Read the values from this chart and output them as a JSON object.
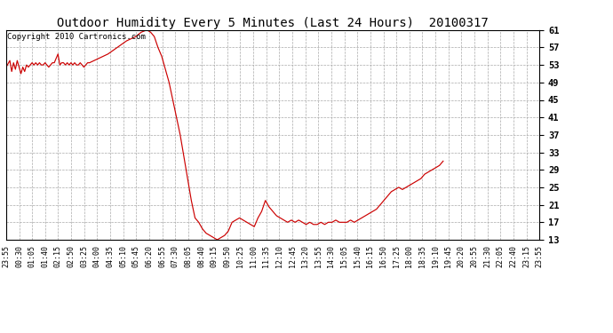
{
  "title": "Outdoor Humidity Every 5 Minutes (Last 24 Hours)  20100317",
  "copyright_text": "Copyright 2010 Cartronics.com",
  "line_color": "#cc0000",
  "background_color": "#ffffff",
  "grid_color": "#aaaaaa",
  "ylim": [
    13.0,
    61.0
  ],
  "yticks": [
    13.0,
    17.0,
    21.0,
    25.0,
    29.0,
    33.0,
    37.0,
    41.0,
    45.0,
    49.0,
    53.0,
    57.0,
    61.0
  ],
  "x_labels": [
    "23:55",
    "00:30",
    "01:05",
    "01:40",
    "02:15",
    "02:50",
    "03:25",
    "04:00",
    "04:35",
    "05:10",
    "05:45",
    "06:20",
    "06:55",
    "07:30",
    "08:05",
    "08:40",
    "09:15",
    "09:50",
    "10:25",
    "11:00",
    "11:35",
    "12:10",
    "12:45",
    "13:20",
    "13:55",
    "14:30",
    "15:05",
    "15:40",
    "16:15",
    "16:50",
    "17:25",
    "18:00",
    "18:35",
    "19:10",
    "19:45",
    "20:20",
    "20:55",
    "21:30",
    "22:05",
    "22:40",
    "23:15",
    "23:55"
  ],
  "humidity_data": [
    [
      0,
      52.5
    ],
    [
      2,
      54.0
    ],
    [
      3,
      51.5
    ],
    [
      4,
      53.5
    ],
    [
      5,
      52.0
    ],
    [
      6,
      54.0
    ],
    [
      7,
      52.5
    ],
    [
      8,
      51.0
    ],
    [
      9,
      52.5
    ],
    [
      10,
      51.5
    ],
    [
      11,
      53.0
    ],
    [
      12,
      52.5
    ],
    [
      13,
      53.0
    ],
    [
      14,
      53.5
    ],
    [
      15,
      53.0
    ],
    [
      16,
      53.5
    ],
    [
      17,
      53.0
    ],
    [
      18,
      53.5
    ],
    [
      19,
      53.0
    ],
    [
      20,
      53.0
    ],
    [
      21,
      53.5
    ],
    [
      22,
      53.0
    ],
    [
      23,
      52.5
    ],
    [
      24,
      53.0
    ],
    [
      25,
      53.5
    ],
    [
      26,
      53.5
    ],
    [
      27,
      54.5
    ],
    [
      28,
      55.5
    ],
    [
      29,
      53.0
    ],
    [
      30,
      53.5
    ],
    [
      31,
      53.5
    ],
    [
      32,
      53.0
    ],
    [
      33,
      53.5
    ],
    [
      34,
      53.0
    ],
    [
      35,
      53.5
    ],
    [
      36,
      53.0
    ],
    [
      37,
      53.5
    ],
    [
      38,
      53.0
    ],
    [
      39,
      53.0
    ],
    [
      40,
      53.5
    ],
    [
      41,
      53.0
    ],
    [
      42,
      52.5
    ],
    [
      43,
      53.0
    ],
    [
      44,
      53.5
    ],
    [
      45,
      53.5
    ],
    [
      50,
      54.5
    ],
    [
      55,
      55.5
    ],
    [
      60,
      57.0
    ],
    [
      65,
      58.5
    ],
    [
      70,
      59.5
    ],
    [
      73,
      60.5
    ],
    [
      76,
      61.0
    ],
    [
      78,
      60.5
    ],
    [
      80,
      59.5
    ],
    [
      82,
      57.0
    ],
    [
      84,
      55.0
    ],
    [
      86,
      52.0
    ],
    [
      88,
      49.0
    ],
    [
      90,
      45.0
    ],
    [
      92,
      41.0
    ],
    [
      94,
      37.0
    ],
    [
      96,
      32.0
    ],
    [
      98,
      27.0
    ],
    [
      100,
      22.0
    ],
    [
      102,
      18.0
    ],
    [
      104,
      17.0
    ],
    [
      106,
      15.5
    ],
    [
      108,
      14.5
    ],
    [
      110,
      14.0
    ],
    [
      112,
      13.5
    ],
    [
      114,
      13.0
    ],
    [
      116,
      13.5
    ],
    [
      118,
      14.0
    ],
    [
      120,
      15.0
    ],
    [
      122,
      17.0
    ],
    [
      124,
      17.5
    ],
    [
      126,
      18.0
    ],
    [
      128,
      17.5
    ],
    [
      130,
      17.0
    ],
    [
      132,
      16.5
    ],
    [
      134,
      16.0
    ],
    [
      136,
      18.0
    ],
    [
      138,
      19.5
    ],
    [
      140,
      22.0
    ],
    [
      142,
      20.5
    ],
    [
      144,
      19.5
    ],
    [
      146,
      18.5
    ],
    [
      148,
      18.0
    ],
    [
      150,
      17.5
    ],
    [
      152,
      17.0
    ],
    [
      154,
      17.5
    ],
    [
      156,
      17.0
    ],
    [
      158,
      17.5
    ],
    [
      160,
      17.0
    ],
    [
      162,
      16.5
    ],
    [
      164,
      17.0
    ],
    [
      166,
      16.5
    ],
    [
      168,
      16.5
    ],
    [
      170,
      17.0
    ],
    [
      172,
      16.5
    ],
    [
      174,
      17.0
    ],
    [
      176,
      17.0
    ],
    [
      178,
      17.5
    ],
    [
      180,
      17.0
    ],
    [
      182,
      17.0
    ],
    [
      184,
      17.0
    ],
    [
      186,
      17.5
    ],
    [
      188,
      17.0
    ],
    [
      190,
      17.5
    ],
    [
      192,
      18.0
    ],
    [
      194,
      18.5
    ],
    [
      196,
      19.0
    ],
    [
      198,
      19.5
    ],
    [
      200,
      20.0
    ],
    [
      202,
      21.0
    ],
    [
      204,
      22.0
    ],
    [
      206,
      23.0
    ],
    [
      208,
      24.0
    ],
    [
      210,
      24.5
    ],
    [
      212,
      25.0
    ],
    [
      214,
      24.5
    ],
    [
      216,
      25.0
    ],
    [
      218,
      25.5
    ],
    [
      220,
      26.0
    ],
    [
      222,
      26.5
    ],
    [
      224,
      27.0
    ],
    [
      226,
      28.0
    ],
    [
      228,
      28.5
    ],
    [
      230,
      29.0
    ],
    [
      232,
      29.5
    ],
    [
      234,
      30.0
    ],
    [
      236,
      31.0
    ]
  ],
  "figsize": [
    6.9,
    3.75
  ],
  "dpi": 100,
  "title_fontsize": 10,
  "tick_fontsize": 7.5,
  "xlabel_fontsize": 6.0,
  "copyright_fontsize": 6.5
}
